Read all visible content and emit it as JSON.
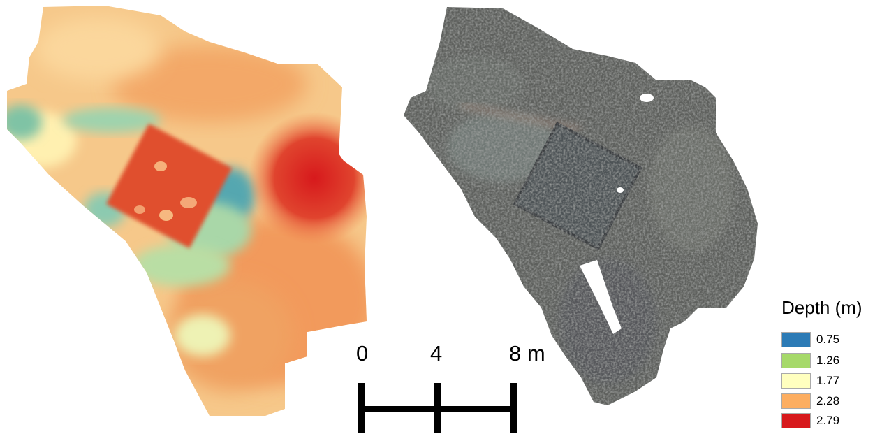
{
  "scale_bar": {
    "ticks": [
      "0",
      "4",
      "8 m"
    ]
  },
  "legend": {
    "title": "Depth (m)",
    "items": [
      {
        "label": "0.75",
        "color": "#2c7bb6"
      },
      {
        "label": "1.26",
        "color": "#a6d96a"
      },
      {
        "label": "1.77",
        "color": "#ffffbf"
      },
      {
        "label": "2.28",
        "color": "#fdae61"
      },
      {
        "label": "2.79",
        "color": "#d7191c"
      }
    ]
  },
  "colors": {
    "dem_low": "#2c7bb6",
    "dem_mid_low": "#a6d96a",
    "dem_mid": "#ffffbf",
    "dem_mid_high": "#fdae61",
    "dem_high": "#d7191c",
    "ortho_base": "#5d5f5c"
  }
}
